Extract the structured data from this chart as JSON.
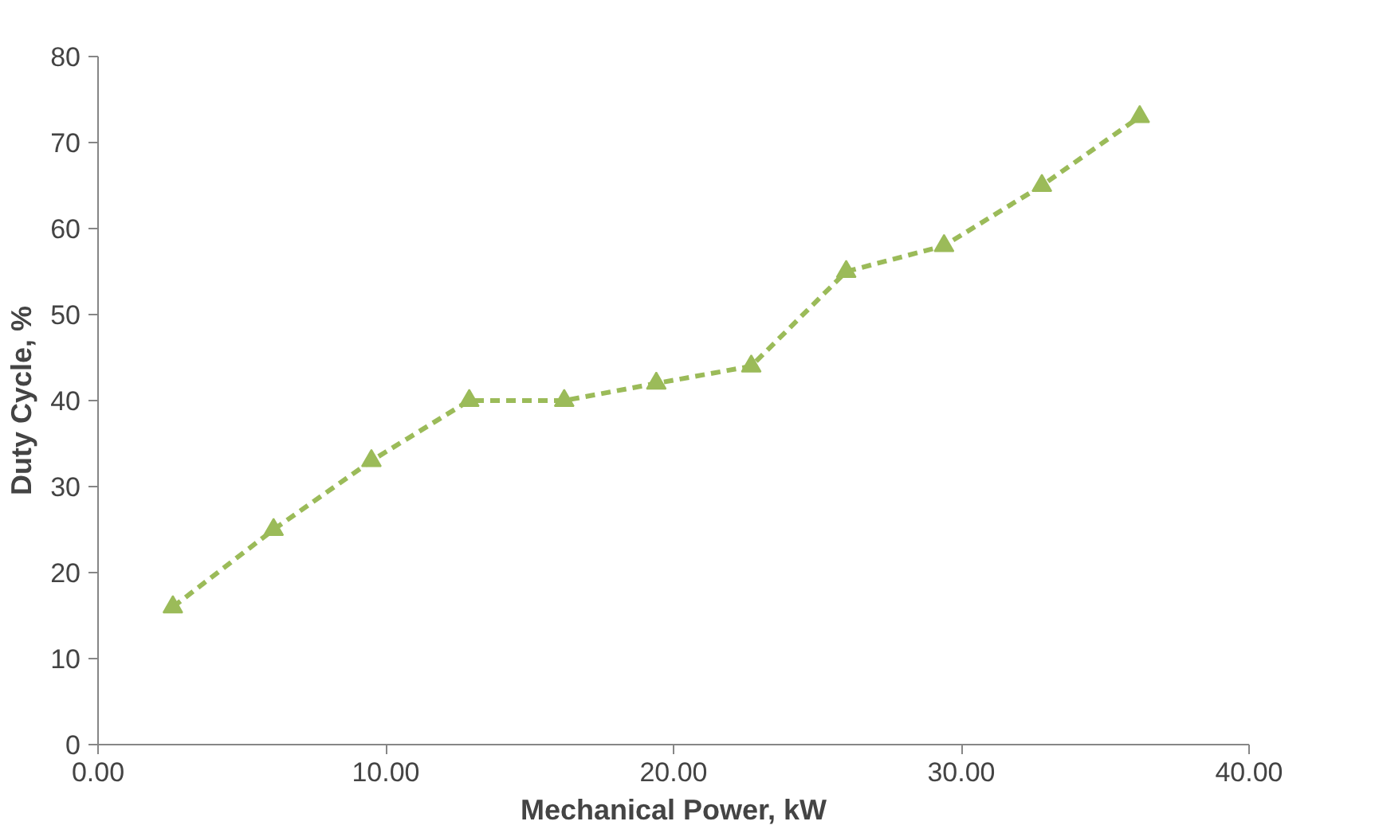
{
  "chart_data": {
    "type": "line",
    "xlabel": "Mechanical Power, kW",
    "ylabel": "Duty Cycle, %",
    "x": [
      2.6,
      6.1,
      9.5,
      12.9,
      16.2,
      19.4,
      22.7,
      26.0,
      29.4,
      32.8,
      36.2
    ],
    "series": [
      {
        "color": "#9bbb59",
        "values": [
          16,
          25,
          33,
          40,
          40,
          42,
          44,
          55,
          58,
          65,
          73
        ]
      }
    ],
    "xlim": [
      0,
      40
    ],
    "xticks": [
      {
        "value": 0,
        "label": "0.00"
      },
      {
        "value": 10,
        "label": "10.00"
      },
      {
        "value": 20,
        "label": "20.00"
      },
      {
        "value": 30,
        "label": "30.00"
      },
      {
        "value": 40,
        "label": "40.00"
      }
    ],
    "ylim": [
      0,
      80
    ],
    "yticks": [
      0,
      10,
      20,
      30,
      40,
      50,
      60,
      70,
      80
    ],
    "grid": false,
    "marker": "triangle",
    "line_style": "dashed"
  }
}
